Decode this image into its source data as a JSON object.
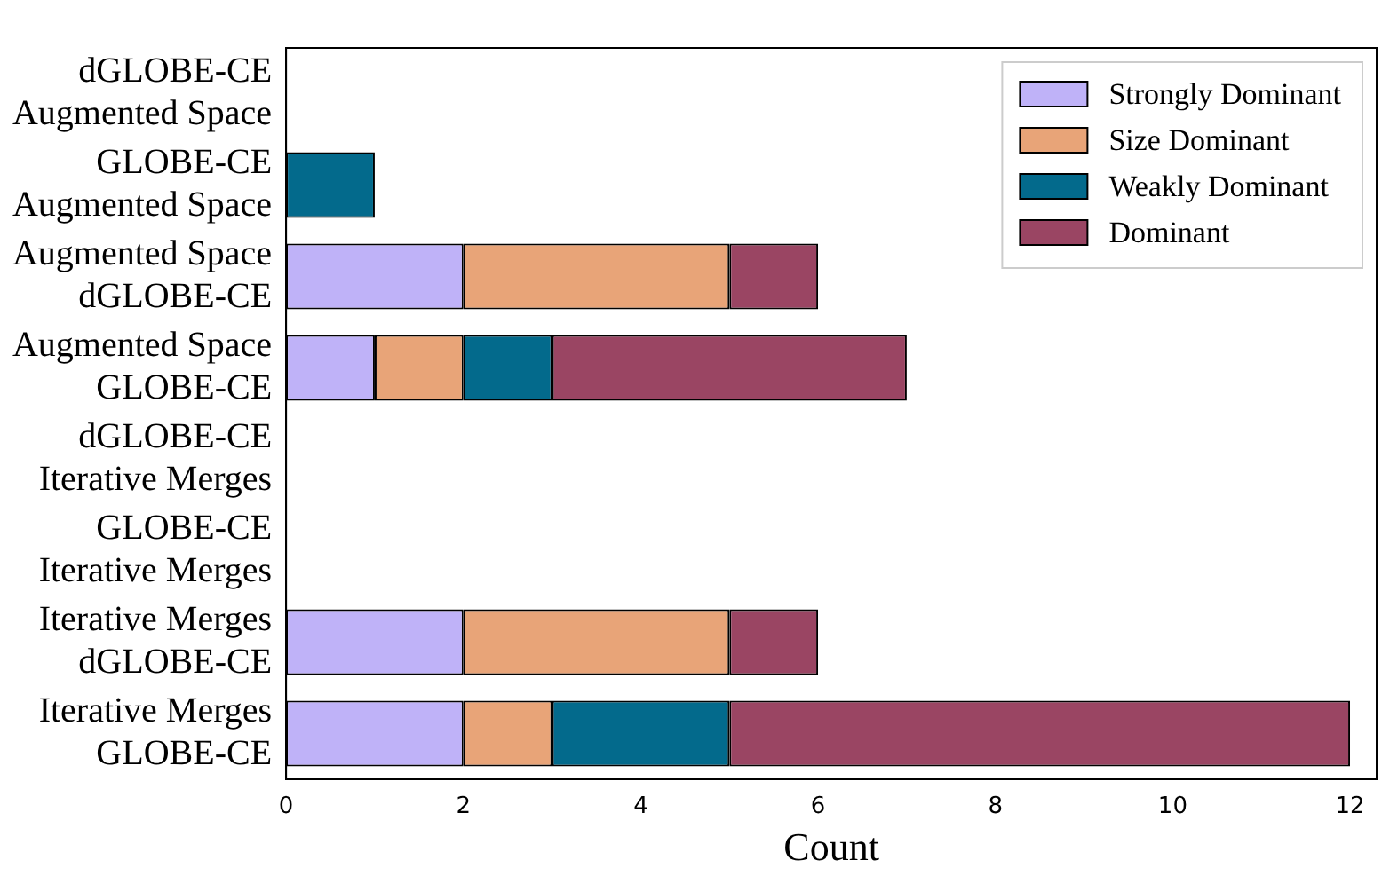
{
  "chart_data": {
    "type": "bar",
    "orientation": "horizontal",
    "stacked": true,
    "xlabel": "Count",
    "categories": [
      "dGLOBE-CE\nAugmented Space",
      "GLOBE-CE\nAugmented Space",
      "Augmented Space\ndGLOBE-CE",
      "Augmented Space\nGLOBE-CE",
      "dGLOBE-CE\nIterative Merges",
      "GLOBE-CE\nIterative Merges",
      "Iterative Merges\ndGLOBE-CE",
      "Iterative Merges\nGLOBE-CE"
    ],
    "series": [
      {
        "name": "Strongly Dominant",
        "color": "#bfb2f8",
        "values": [
          0,
          0,
          2,
          1,
          0,
          0,
          2,
          2
        ]
      },
      {
        "name": "Size Dominant",
        "color": "#e8a478",
        "values": [
          0,
          0,
          3,
          1,
          0,
          0,
          3,
          1
        ]
      },
      {
        "name": "Weakly Dominant",
        "color": "#036a8c",
        "values": [
          0,
          1,
          0,
          1,
          0,
          0,
          0,
          2
        ]
      },
      {
        "name": "Dominant",
        "color": "#9a4563",
        "values": [
          0,
          0,
          1,
          4,
          0,
          0,
          1,
          7
        ]
      }
    ],
    "xlim": [
      0,
      12.3
    ],
    "xticks": [
      0,
      2,
      4,
      6,
      8,
      10,
      12
    ],
    "grid": false,
    "legend": "top right"
  }
}
